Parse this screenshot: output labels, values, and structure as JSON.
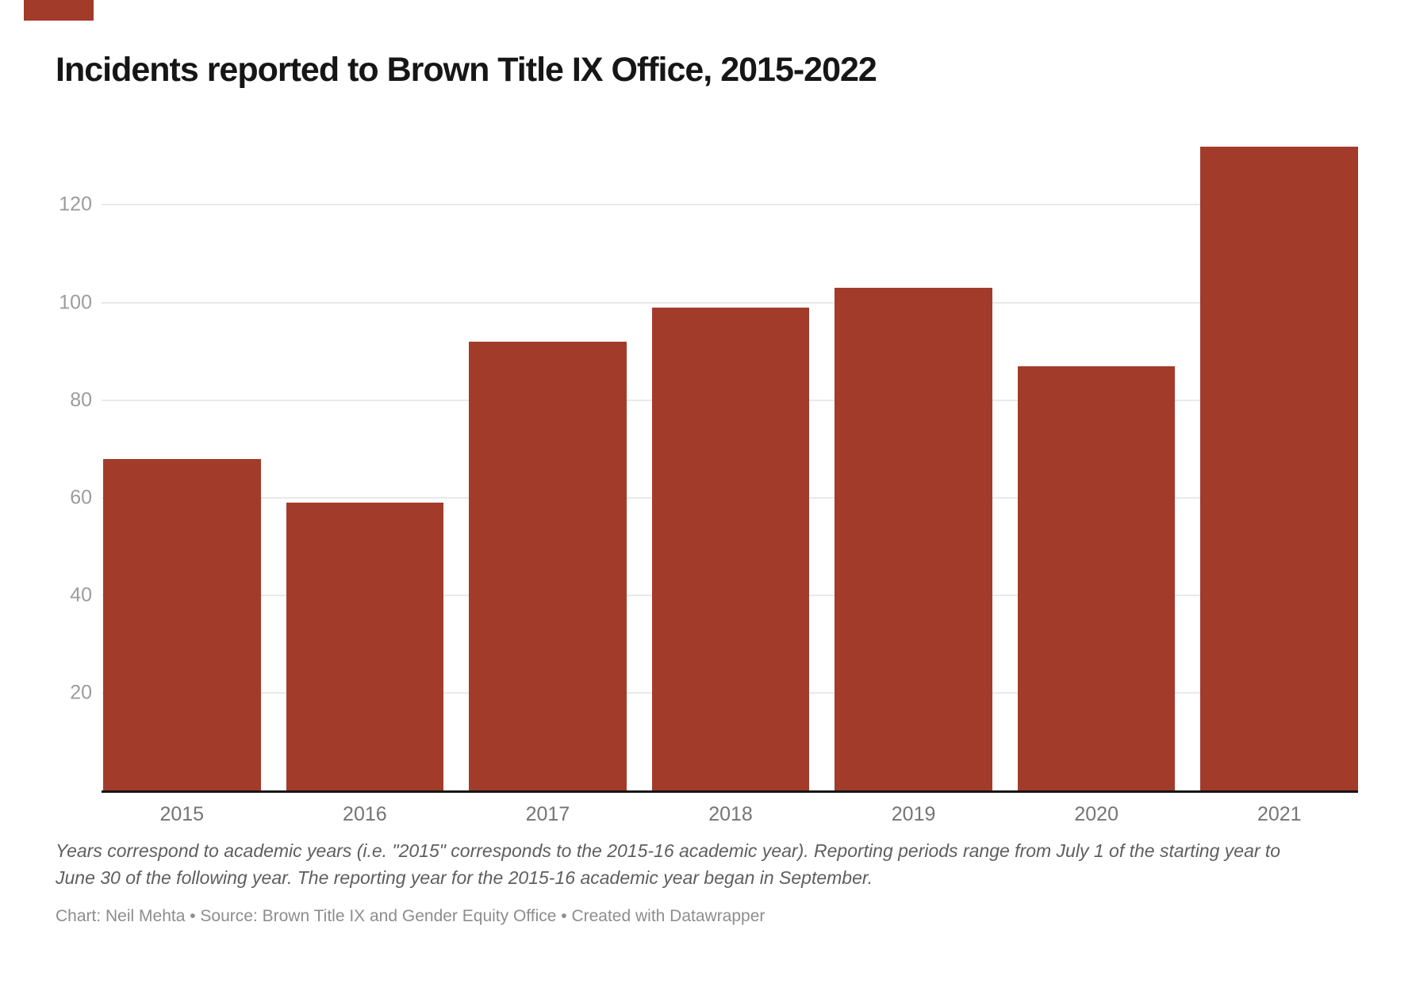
{
  "title": "Incidents reported to Brown Title IX Office, 2015-2022",
  "chart_data": {
    "type": "bar",
    "categories": [
      "2015",
      "2016",
      "2017",
      "2018",
      "2019",
      "2020",
      "2021"
    ],
    "values": [
      68,
      59,
      92,
      99,
      103,
      87,
      132
    ],
    "title": "Incidents reported to Brown Title IX Office, 2015-2022",
    "xlabel": "",
    "ylabel": "",
    "ylim": [
      0,
      136
    ],
    "yticks": [
      20,
      40,
      60,
      80,
      100,
      120
    ],
    "ytick_labels": [
      "20",
      "40",
      "60",
      "80",
      "100",
      "120"
    ],
    "grid": "horizontal",
    "legend": "none",
    "bar_color": "#a33b2b"
  },
  "note": {
    "line1": "Years correspond to academic years (i.e. \"2015\" corresponds to the 2015-16 academic year). Reporting periods range from July 1 of the starting year to",
    "line2": "June 30 of the following year. The reporting year for the 2015-16 academic year began in September."
  },
  "byline": {
    "text": "Chart: Neil Mehta • Source: Brown Title IX and Gender Equity Office • Created with Datawrapper"
  },
  "colors": {
    "bar": "#a33b2b",
    "axis_line": "#151515",
    "gridline": "#e9e9e9",
    "title_text": "#161616",
    "ytick_text": "#9c9c9c",
    "xtick_text": "#757575"
  }
}
